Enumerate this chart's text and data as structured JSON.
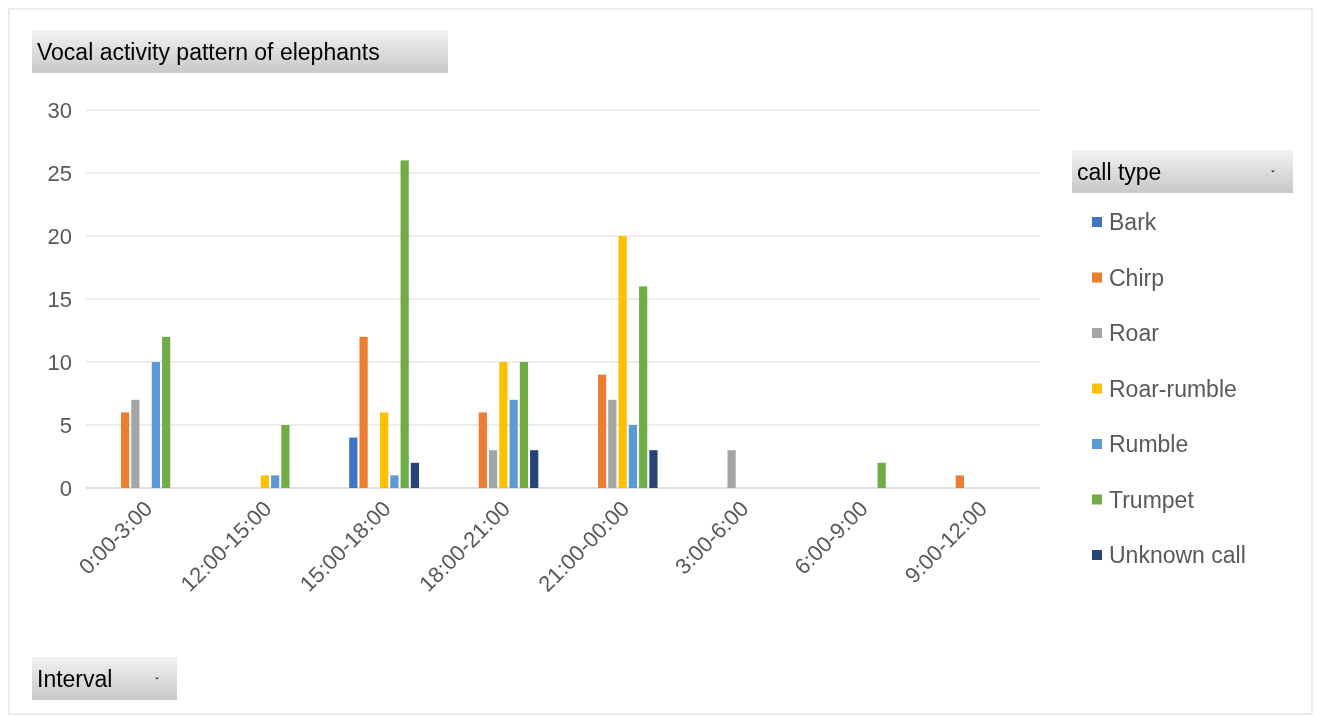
{
  "chart_data": {
    "type": "bar",
    "title": "Vocal activity pattern of elephants",
    "xlabel": "Interval",
    "legend_title": "call type",
    "categories": [
      "0:00-3:00",
      "12:00-15:00",
      "15:00-18:00",
      "18:00-21:00",
      "21:00-00:00",
      "3:00-6:00",
      "6:00-9:00",
      "9:00-12:00"
    ],
    "series": [
      {
        "name": "Bark",
        "color": "#4472c4",
        "values": [
          null,
          null,
          4,
          null,
          null,
          null,
          null,
          null
        ]
      },
      {
        "name": "Chirp",
        "color": "#ed7d31",
        "values": [
          6,
          null,
          12,
          6,
          9,
          null,
          null,
          1
        ]
      },
      {
        "name": "Roar",
        "color": "#a5a5a5",
        "values": [
          7,
          null,
          null,
          3,
          7,
          3,
          null,
          null
        ]
      },
      {
        "name": "Roar-rumble",
        "color": "#ffc000",
        "values": [
          null,
          1,
          6,
          10,
          20,
          null,
          null,
          null
        ]
      },
      {
        "name": "Rumble",
        "color": "#5b9bd5",
        "values": [
          10,
          1,
          1,
          7,
          5,
          null,
          null,
          null
        ]
      },
      {
        "name": "Trumpet",
        "color": "#70ad47",
        "values": [
          12,
          5,
          26,
          10,
          16,
          null,
          2,
          null
        ]
      },
      {
        "name": "Unknown call",
        "color": "#264478",
        "values": [
          null,
          null,
          2,
          3,
          3,
          null,
          null,
          null
        ]
      }
    ],
    "ylim": [
      0,
      30
    ],
    "yticks": [
      0,
      5,
      10,
      15,
      20,
      25,
      30
    ],
    "grid": "y",
    "legend": "right"
  }
}
